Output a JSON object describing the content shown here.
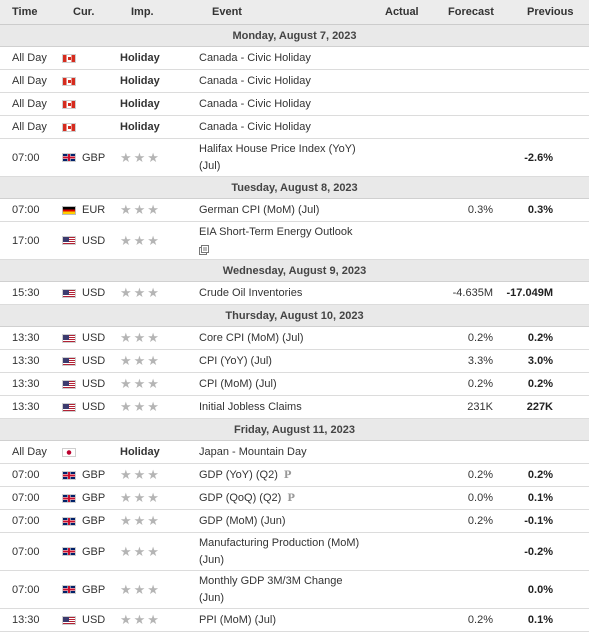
{
  "header": {
    "time": "Time",
    "cur": "Cur.",
    "imp": "Imp.",
    "event": "Event",
    "actual": "Actual",
    "forecast": "Forecast",
    "previous": "Previous"
  },
  "days": [
    {
      "label": "Monday, August 7, 2023"
    },
    {
      "label": "Tuesday, August 8, 2023"
    },
    {
      "label": "Wednesday, August 9, 2023"
    },
    {
      "label": "Thursday, August 10, 2023"
    },
    {
      "label": "Friday, August 11, 2023"
    }
  ],
  "events": [
    {
      "time": "All Day",
      "currency": "",
      "flag": "canada-flag-icon",
      "importance": "Holiday",
      "event_line1": "Canada - Civic Holiday",
      "event_line2": "",
      "actual": "",
      "forecast": "",
      "previous": ""
    },
    {
      "time": "All Day",
      "currency": "",
      "flag": "canada-flag-icon",
      "importance": "Holiday",
      "event_line1": "Canada - Civic Holiday",
      "event_line2": "",
      "actual": "",
      "forecast": "",
      "previous": ""
    },
    {
      "time": "All Day",
      "currency": "",
      "flag": "canada-flag-icon",
      "importance": "Holiday",
      "event_line1": "Canada - Civic Holiday",
      "event_line2": "",
      "actual": "",
      "forecast": "",
      "previous": ""
    },
    {
      "time": "All Day",
      "currency": "",
      "flag": "canada-flag-icon",
      "importance": "Holiday",
      "event_line1": "Canada - Civic Holiday",
      "event_line2": "",
      "actual": "",
      "forecast": "",
      "previous": ""
    },
    {
      "time": "07:00",
      "currency": "GBP",
      "flag": "uk-flag-icon",
      "importance": "",
      "event_line1": "Halifax House Price Index (YoY)",
      "event_line2": "(Jul)",
      "actual": "",
      "forecast": "",
      "previous": "-2.6%"
    },
    {
      "time": "07:00",
      "currency": "EUR",
      "flag": "germany-flag-icon",
      "importance": "",
      "event_line1": "German CPI (MoM) (Jul)",
      "event_line2": "",
      "actual": "",
      "forecast": "0.3%",
      "previous": "0.3%"
    },
    {
      "time": "17:00",
      "currency": "USD",
      "flag": "usa-flag-icon",
      "importance": "",
      "event_line1": "EIA Short-Term Energy Outlook",
      "event_line2": "",
      "actual": "",
      "forecast": "",
      "previous": ""
    },
    {
      "time": "15:30",
      "currency": "USD",
      "flag": "usa-flag-icon",
      "importance": "",
      "event_line1": "Crude Oil Inventories",
      "event_line2": "",
      "actual": "",
      "forecast": "-4.635M",
      "previous": "-17.049M"
    },
    {
      "time": "13:30",
      "currency": "USD",
      "flag": "usa-flag-icon",
      "importance": "",
      "event_line1": "Core CPI (MoM) (Jul)",
      "event_line2": "",
      "actual": "",
      "forecast": "0.2%",
      "previous": "0.2%"
    },
    {
      "time": "13:30",
      "currency": "USD",
      "flag": "usa-flag-icon",
      "importance": "",
      "event_line1": "CPI (YoY) (Jul)",
      "event_line2": "",
      "actual": "",
      "forecast": "3.3%",
      "previous": "3.0%"
    },
    {
      "time": "13:30",
      "currency": "USD",
      "flag": "usa-flag-icon",
      "importance": "",
      "event_line1": "CPI (MoM) (Jul)",
      "event_line2": "",
      "actual": "",
      "forecast": "0.2%",
      "previous": "0.2%"
    },
    {
      "time": "13:30",
      "currency": "USD",
      "flag": "usa-flag-icon",
      "importance": "",
      "event_line1": "Initial Jobless Claims",
      "event_line2": "",
      "actual": "",
      "forecast": "231K",
      "previous": "227K"
    },
    {
      "time": "All Day",
      "currency": "",
      "flag": "japan-flag-icon",
      "importance": "Holiday",
      "event_line1": "Japan - Mountain Day",
      "event_line2": "",
      "actual": "",
      "forecast": "",
      "previous": ""
    },
    {
      "time": "07:00",
      "currency": "GBP",
      "flag": "uk-flag-icon",
      "importance": "",
      "event_line1": "GDP (YoY) (Q2)",
      "event_line2": "",
      "actual": "",
      "forecast": "0.2%",
      "previous": "0.2%"
    },
    {
      "time": "07:00",
      "currency": "GBP",
      "flag": "uk-flag-icon",
      "importance": "",
      "event_line1": "GDP (QoQ) (Q2)",
      "event_line2": "",
      "actual": "",
      "forecast": "0.0%",
      "previous": "0.1%"
    },
    {
      "time": "07:00",
      "currency": "GBP",
      "flag": "uk-flag-icon",
      "importance": "",
      "event_line1": "GDP (MoM) (Jun)",
      "event_line2": "",
      "actual": "",
      "forecast": "0.2%",
      "previous": "-0.1%"
    },
    {
      "time": "07:00",
      "currency": "GBP",
      "flag": "uk-flag-icon",
      "importance": "",
      "event_line1": "Manufacturing Production (MoM)",
      "event_line2": "(Jun)",
      "actual": "",
      "forecast": "",
      "previous": "-0.2%"
    },
    {
      "time": "07:00",
      "currency": "GBP",
      "flag": "uk-flag-icon",
      "importance": "",
      "event_line1": "Monthly GDP 3M/3M Change",
      "event_line2": "(Jun)",
      "actual": "",
      "forecast": "",
      "previous": "0.0%"
    },
    {
      "time": "13:30",
      "currency": "USD",
      "flag": "usa-flag-icon",
      "importance": "",
      "event_line1": "PPI (MoM) (Jul)",
      "event_line2": "",
      "actual": "",
      "forecast": "0.2%",
      "previous": "0.1%"
    }
  ],
  "stars_glyph": "★★★",
  "preliminary_mark": "P",
  "colors": {
    "header_bg": "#ececec",
    "day_bg": "#e9e9e9",
    "star": "#b5b5b5"
  }
}
